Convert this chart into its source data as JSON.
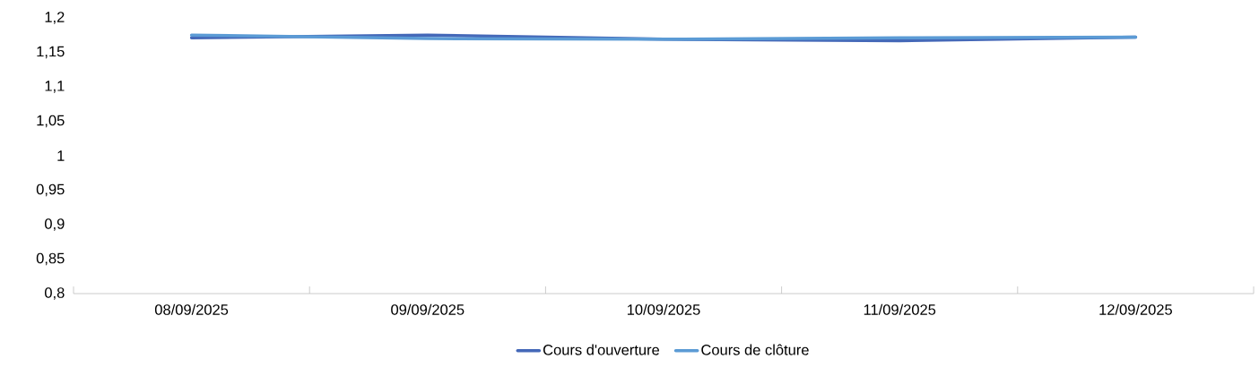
{
  "chart_data": {
    "type": "line",
    "categories": [
      "08/09/2025",
      "09/09/2025",
      "10/09/2025",
      "11/09/2025",
      "12/09/2025"
    ],
    "series": [
      {
        "name": "Cours d'ouverture",
        "color": "#4468b8",
        "values": [
          1.171,
          1.175,
          1.169,
          1.167,
          1.172
        ]
      },
      {
        "name": "Cours de clôture",
        "color": "#5b9bd5",
        "values": [
          1.175,
          1.17,
          1.169,
          1.171,
          1.172
        ]
      }
    ],
    "ylim": [
      0.8,
      1.2
    ],
    "yticks": [
      {
        "value": 0.8,
        "label": "0,8"
      },
      {
        "value": 0.85,
        "label": "0,85"
      },
      {
        "value": 0.9,
        "label": "0,9"
      },
      {
        "value": 0.95,
        "label": "0,95"
      },
      {
        "value": 1,
        "label": "1"
      },
      {
        "value": 1.05,
        "label": "1,05"
      },
      {
        "value": 1.1,
        "label": "1,1"
      },
      {
        "value": 1.15,
        "label": "1,15"
      },
      {
        "value": 1.2,
        "label": "1,2"
      }
    ],
    "grid": false,
    "legend": "bottom",
    "marker": "none",
    "line_style": "solid"
  }
}
